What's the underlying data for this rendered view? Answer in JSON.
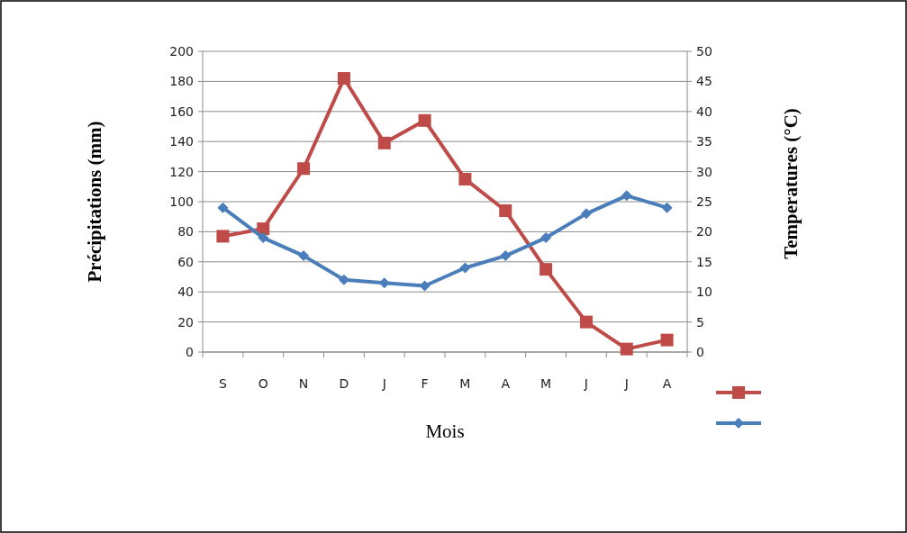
{
  "chart_data": {
    "type": "line",
    "xlabel": "Mois",
    "ylabel": "Précipitations (mm)",
    "y2label": "Temperatures (°C)",
    "categories": [
      "S",
      "O",
      "N",
      "D",
      "J",
      "F",
      "M",
      "A",
      "M",
      "J",
      "J",
      "A"
    ],
    "series": [
      {
        "color": "#be4b48",
        "marker": "square",
        "values": [
          77,
          82,
          122,
          182,
          139,
          154,
          115,
          94,
          55,
          20,
          2,
          8
        ]
      },
      {
        "color": "#4a7ebb",
        "marker": "diamond",
        "axis": "y2",
        "values": [
          24,
          19,
          16,
          12,
          11.5,
          11,
          14,
          16,
          19,
          23,
          26,
          24
        ]
      }
    ],
    "ylim": [
      0,
      200
    ],
    "yticks": [
      0,
      20,
      40,
      60,
      80,
      100,
      120,
      140,
      160,
      180,
      200
    ],
    "y2lim": [
      0,
      50
    ],
    "y2ticks": [
      0,
      5,
      10,
      15,
      20,
      25,
      30,
      35,
      40,
      45,
      50
    ],
    "grid": "y"
  }
}
